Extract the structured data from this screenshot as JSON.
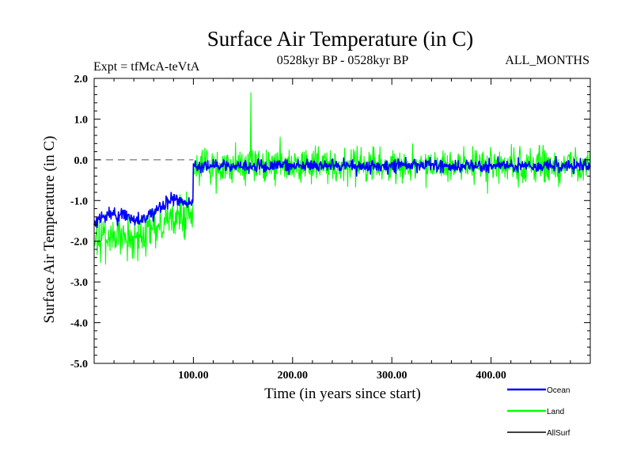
{
  "chart_data": {
    "type": "line",
    "title": "Surface Air Temperature (in C)",
    "subtitle": "0528kyr BP - 0528kyr BP",
    "experiment_label": "Expt = tfMcA-teVtA",
    "months_label": "ALL_MONTHS",
    "xlabel": "Time (in years since start)",
    "ylabel": "Surface Air Temperature (in C)",
    "xlim": [
      0,
      500
    ],
    "ylim": [
      -5.0,
      2.0
    ],
    "x_ticks": [
      100,
      200,
      300,
      400
    ],
    "x_tick_labels": [
      "100.00",
      "200.00",
      "300.00",
      "400.00"
    ],
    "y_ticks": [
      -5.0,
      -4.0,
      -3.0,
      -2.0,
      -1.0,
      0.0,
      1.0,
      2.0
    ],
    "y_tick_labels": [
      "-5.0",
      "-4.0",
      "-3.0",
      "-2.0",
      "-1.0",
      "0.0",
      "1.0",
      "2.0"
    ],
    "reference_line": {
      "y": 0.0,
      "style": "dashed"
    },
    "legend_position": "bottom-right",
    "series": [
      {
        "name": "Land",
        "color": "#00ff00",
        "noise": "high",
        "segments": [
          {
            "x_range": [
              0,
              100
            ],
            "mean_start": -2.1,
            "mean_end": -1.4,
            "amplitude": 0.75
          },
          {
            "x_range": [
              100,
              500
            ],
            "mean": -0.15,
            "amplitude": 0.6,
            "peak": {
              "x": 158,
              "y": 1.65
            }
          }
        ]
      },
      {
        "name": "Ocean",
        "color": "#0000ff",
        "noise": "low",
        "segments": [
          {
            "x_range": [
              0,
              100
            ],
            "mean_start": -1.6,
            "mean_end": -1.0,
            "amplitude": 0.25
          },
          {
            "x_range": [
              100,
              500
            ],
            "mean": -0.15,
            "amplitude": 0.22
          }
        ]
      },
      {
        "name": "AllSurf",
        "color": "#000000",
        "noise": "none",
        "segments": []
      }
    ]
  }
}
